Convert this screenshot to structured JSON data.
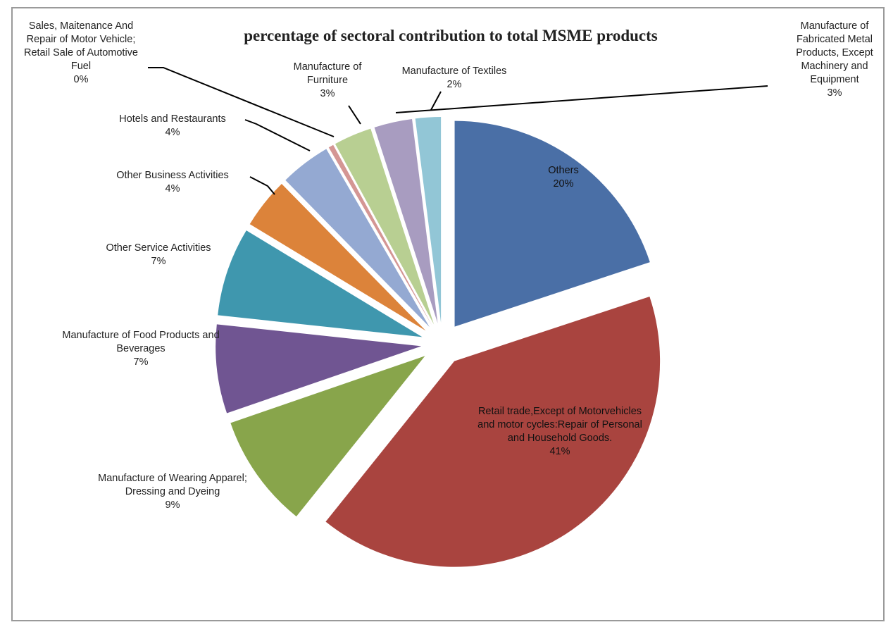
{
  "chart_data": {
    "type": "pie",
    "title": "percentage of sectoral contribution to total MSME products",
    "categories": [
      "Others",
      "Retail trade,Except of Motorvehicles and motor cycles:Repair of Personal and Household Goods.",
      "Manufacture of Wearing Apparel; Dressing and Dyeing",
      "Manufacture of Food Products and Beverages",
      "Other Service Activities",
      "Other Business Activities",
      "Hotels and Restaurants",
      "Sales, Maitenance And Repair of Motor Vehicle; Retail Sale of Automotive Fuel",
      "Manufacture of Furniture",
      "Manufacture of Fabricated Metal Products, Except Machinery and Equipment",
      "Manufacture of Textiles"
    ],
    "values": [
      20,
      41,
      9,
      7,
      7,
      4,
      4,
      0.4,
      3,
      3,
      2
    ],
    "value_labels": [
      "20%",
      "41%",
      "9%",
      "7%",
      "7%",
      "4%",
      "4%",
      "0%",
      "3%",
      "3%",
      "2%"
    ],
    "colors": [
      "#4a6fa6",
      "#a9443f",
      "#88a54b",
      "#705592",
      "#3f97ae",
      "#dc833a",
      "#94a9d2",
      "#d49694",
      "#b8cf92",
      "#a89cc0",
      "#92c6d6"
    ]
  }
}
